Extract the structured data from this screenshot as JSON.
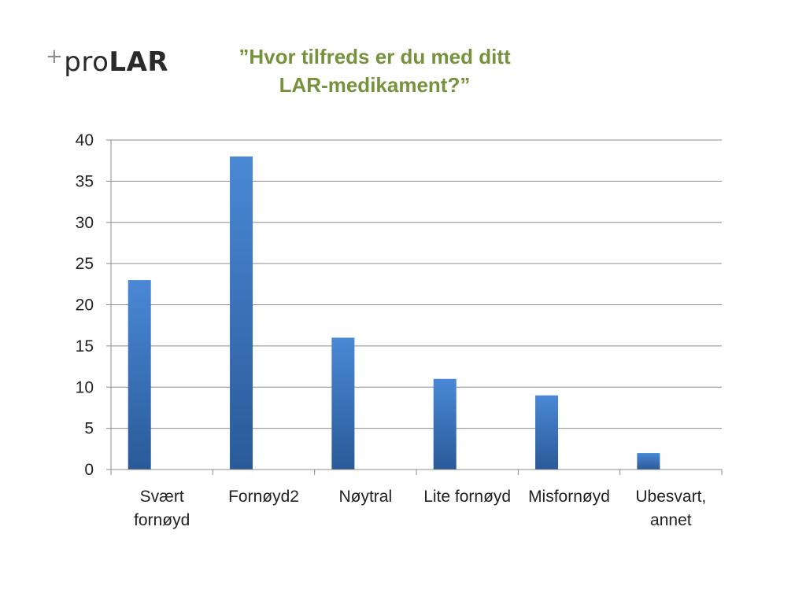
{
  "logo": {
    "plus": "+",
    "pro": "pro",
    "lar": "LAR"
  },
  "title_lines": [
    "”Hvor tilfreds er du med ditt",
    "LAR-medikament?”"
  ],
  "colors": {
    "title": "#76923c",
    "bar_top": "#4a88d6",
    "bar_bottom": "#2a5a98",
    "grid": "#8c8c8c"
  },
  "chart_data": {
    "type": "bar",
    "title": "”Hvor tilfreds er du med ditt LAR-medikament?”",
    "categories": [
      "Svært fornøyd",
      "Fornøyd2",
      "Nøytral",
      "Lite fornøyd",
      "Misfornøyd",
      "Ubesvart, annet"
    ],
    "category_lines": [
      [
        "Svært",
        "fornøyd"
      ],
      [
        "Fornøyd2"
      ],
      [
        "Nøytral"
      ],
      [
        "Lite fornøyd"
      ],
      [
        "Misfornøyd"
      ],
      [
        "Ubesvart,",
        "annet"
      ]
    ],
    "values": [
      23,
      38,
      16,
      11,
      9,
      2
    ],
    "xlabel": "",
    "ylabel": "",
    "ylim": [
      0,
      40
    ],
    "yticks": [
      0,
      5,
      10,
      15,
      20,
      25,
      30,
      35,
      40
    ],
    "grid": true,
    "legend": "none"
  }
}
